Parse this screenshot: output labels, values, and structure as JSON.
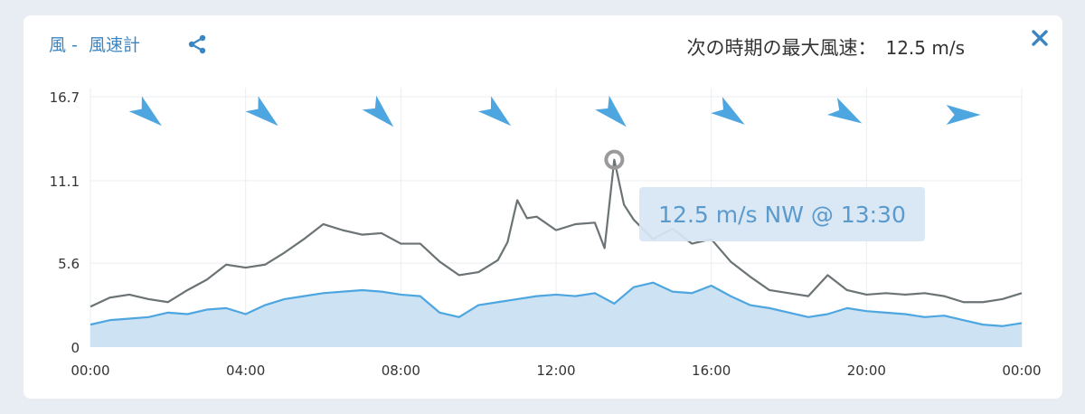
{
  "header": {
    "title_prefix": "風 -",
    "title": "風速計",
    "max_label": "次の時期の最大風速：",
    "max_value": "12.5 m/s"
  },
  "icons": {
    "share": "share-icon",
    "close": "close-icon"
  },
  "colors": {
    "gust_line": "#6b7374",
    "avg_line": "#4ea6e0",
    "avg_fill": "#cde3f3",
    "arrow": "#4ea6e0",
    "title": "#3b86c2"
  },
  "tooltip": {
    "text": "12.5 m/s NW @ 13:30"
  },
  "chart_data": {
    "type": "line",
    "title": "",
    "xlabel": "",
    "ylabel": "",
    "xlim": [
      0,
      24
    ],
    "ylim": [
      0,
      16.7
    ],
    "x_tick_labels": [
      "00:00",
      "04:00",
      "08:00",
      "12:00",
      "16:00",
      "20:00",
      "00:00"
    ],
    "y_tick_labels": [
      "0",
      "5.6",
      "11.1",
      "16.7"
    ],
    "y_ticks": [
      0,
      5.6,
      11.1,
      16.7
    ],
    "grid": true,
    "highlight": {
      "x": 13.5,
      "y": 12.5
    },
    "direction_arrows": {
      "hours": [
        1.5,
        4.5,
        7.5,
        10.5,
        13.5,
        16.5,
        19.5,
        22.5
      ],
      "directions": [
        "NW",
        "NW",
        "NW",
        "NW",
        "NW",
        "NW",
        "NW",
        "W"
      ],
      "arrow_rotation_deg": [
        40,
        40,
        45,
        40,
        45,
        35,
        30,
        0
      ]
    },
    "series": [
      {
        "name": "",
        "role": "gust",
        "x": [
          0,
          0.5,
          1,
          1.5,
          2,
          2.5,
          3,
          3.5,
          4,
          4.5,
          5,
          5.5,
          6,
          6.5,
          7,
          7.5,
          8,
          8.5,
          9,
          9.5,
          10,
          10.5,
          10.75,
          11,
          11.25,
          11.5,
          12,
          12.5,
          13,
          13.25,
          13.5,
          13.75,
          14,
          14.5,
          15,
          15.5,
          16,
          16.5,
          17,
          17.5,
          18,
          18.5,
          19,
          19.5,
          20,
          20.5,
          21,
          21.5,
          22,
          22.5,
          23,
          23.5,
          24
        ],
        "values": [
          2.7,
          3.3,
          3.5,
          3.2,
          3.0,
          3.8,
          4.5,
          5.5,
          5.3,
          5.5,
          6.3,
          7.2,
          8.2,
          7.8,
          7.5,
          7.6,
          6.9,
          6.9,
          5.7,
          4.8,
          5.0,
          5.8,
          7.0,
          9.8,
          8.6,
          8.7,
          7.8,
          8.2,
          8.3,
          6.6,
          12.5,
          9.5,
          8.5,
          7.2,
          7.9,
          6.9,
          7.2,
          5.7,
          4.7,
          3.8,
          3.6,
          3.4,
          4.8,
          3.8,
          3.5,
          3.6,
          3.5,
          3.6,
          3.4,
          3.0,
          3.0,
          3.2,
          3.6
        ]
      },
      {
        "name": "",
        "role": "average",
        "x": [
          0,
          0.5,
          1,
          1.5,
          2,
          2.5,
          3,
          3.5,
          4,
          4.5,
          5,
          5.5,
          6,
          6.5,
          7,
          7.5,
          8,
          8.5,
          9,
          9.5,
          10,
          10.5,
          11,
          11.5,
          12,
          12.5,
          13,
          13.5,
          14,
          14.5,
          15,
          15.5,
          16,
          16.5,
          17,
          17.5,
          18,
          18.5,
          19,
          19.5,
          20,
          20.5,
          21,
          21.5,
          22,
          22.5,
          23,
          23.5,
          24
        ],
        "values": [
          1.5,
          1.8,
          1.9,
          2.0,
          2.3,
          2.2,
          2.5,
          2.6,
          2.2,
          2.8,
          3.2,
          3.4,
          3.6,
          3.7,
          3.8,
          3.7,
          3.5,
          3.4,
          2.3,
          2.0,
          2.8,
          3.0,
          3.2,
          3.4,
          3.5,
          3.4,
          3.6,
          2.9,
          4.0,
          4.3,
          3.7,
          3.6,
          4.1,
          3.4,
          2.8,
          2.6,
          2.3,
          2.0,
          2.2,
          2.6,
          2.4,
          2.3,
          2.2,
          2.0,
          2.1,
          1.8,
          1.5,
          1.4,
          1.6
        ]
      }
    ]
  }
}
